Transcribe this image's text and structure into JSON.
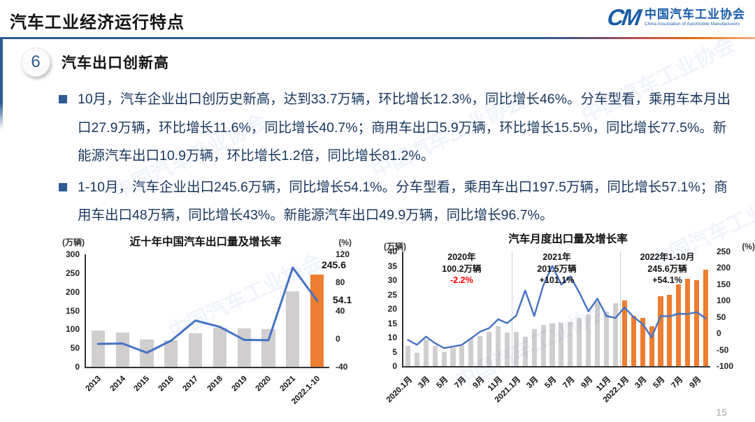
{
  "header": {
    "title": "汽车工业经济运行特点",
    "logo": {
      "monogram": "CM",
      "org_cn": "中国汽车工业协会",
      "org_en": "China Association of Automobile Manufacturers"
    }
  },
  "section": {
    "number": "6",
    "title": "汽车出口创新高"
  },
  "bullets": [
    "10月，汽车企业出口创历史新高，达到33.7万辆，环比增长12.3%，同比增长46%。分车型看，乘用车本月出口27.9万辆，环比增长11.6%，同比增长40.7%；商用车出口5.9万辆，环比增长15.5%，同比增长77.5%。新能源汽车出口10.9万辆，环比增长1.2倍，同比增长81.2%。",
    "1-10月，汽车企业出口245.6万辆，同比增长54.1%。分车型看，乘用车出口197.5万辆，同比增长57.1%；商用车出口48万辆，同比增长43%。新能源汽车出口49.9万辆，同比增长96.7%。"
  ],
  "watermark": "中国汽车工业协会",
  "page_number": "15",
  "colors": {
    "accent_blue": "#2E5D93",
    "line_blue": "#4472C4",
    "bar_gray": "#D0CECE",
    "bar_orange": "#ED7D31",
    "text_navy": "#17365D",
    "annotation_red": "#FF0000",
    "logo_blue": "#1A5CA8",
    "divider_orange": "#E36C09"
  },
  "chart_data": [
    {
      "type": "bar",
      "title": "近十年中国汽车出口量及增长率",
      "left_axis": {
        "unit": "(万辆)",
        "ticks": [
          300,
          250,
          200,
          150,
          100,
          50,
          0
        ],
        "min": 0,
        "max": 300
      },
      "right_axis": {
        "unit": "(%)",
        "ticks": [
          120,
          80,
          40,
          0,
          -40
        ],
        "min": -40,
        "max": 120
      },
      "categories": [
        "2013",
        "2014",
        "2015",
        "2016",
        "2017",
        "2018",
        "2019",
        "2020",
        "2021",
        "2022.1-10"
      ],
      "series": [
        {
          "name": "出口量(万辆)",
          "kind": "bar",
          "values": [
            97.7,
            91.0,
            72.8,
            70.8,
            89.1,
            104.1,
            102.4,
            100.2,
            201.5,
            245.6
          ]
        },
        {
          "name": "增长率(%)",
          "kind": "line",
          "values": [
            -7.5,
            -6.8,
            -20.0,
            -2.7,
            25.8,
            16.8,
            -1.6,
            -2.2,
            101.1,
            54.1
          ]
        }
      ],
      "highlight_last_bar": true,
      "point_labels": {
        "bar_label": "245.6",
        "line_label": "54.1"
      },
      "legend": "none",
      "grid": false
    },
    {
      "type": "bar",
      "title": "汽车月度出口量及增长率",
      "left_axis": {
        "unit": "(万辆)",
        "ticks": [
          40,
          35,
          30,
          25,
          20,
          15,
          10,
          5,
          0
        ],
        "min": 0,
        "max": 40
      },
      "right_axis": {
        "unit": "(%)",
        "ticks": [
          250,
          200,
          150,
          100,
          50,
          0,
          -50,
          -100
        ],
        "min": -100,
        "max": 250
      },
      "x_labels": [
        "2020.1月",
        "3月",
        "5月",
        "7月",
        "9月",
        "11月",
        "2021.1月",
        "3月",
        "5月",
        "7月",
        "9月",
        "11月",
        "2022.1月",
        "3月",
        "5月",
        "7月",
        "9月"
      ],
      "series": [
        {
          "name": "月度出口量(万辆)",
          "kind": "bar",
          "values": [
            7.0,
            4.7,
            9.3,
            7.0,
            4.9,
            6.3,
            7.1,
            9.7,
            10.4,
            11.9,
            14.0,
            11.8,
            12.0,
            10.3,
            13.0,
            14.3,
            14.8,
            15.1,
            15.3,
            16.9,
            18.0,
            22.4,
            19.1,
            22.0,
            22.9,
            17.6,
            16.8,
            14.0,
            24.3,
            24.8,
            28.6,
            30.5,
            30.0,
            33.7
          ]
        },
        {
          "name": "同比增长率(%)",
          "kind": "line",
          "values": [
            -20,
            -35,
            -10,
            -30,
            -45,
            -40,
            -35,
            -15,
            5,
            16,
            43,
            31,
            54,
            131,
            53,
            146,
            206,
            149,
            174,
            124,
            67,
            106,
            53,
            47,
            79,
            50,
            29,
            -12,
            53,
            52,
            60,
            59,
            65,
            46
          ]
        }
      ],
      "orange_from_index": 24,
      "dividers_at": [
        12,
        24
      ],
      "annotations": [
        {
          "lines": [
            "2020年",
            "100.2万辆",
            "-2.2%"
          ],
          "last_red": true,
          "x_pct": 19
        },
        {
          "lines": [
            "2021年",
            "201.5万辆",
            "+101.1%"
          ],
          "last_red": false,
          "x_pct": 50
        },
        {
          "lines": [
            "2022年1-10月",
            "245.6万辆",
            "+54.1%"
          ],
          "last_red": false,
          "x_pct": 86
        }
      ],
      "legend": "none",
      "grid": false
    }
  ]
}
